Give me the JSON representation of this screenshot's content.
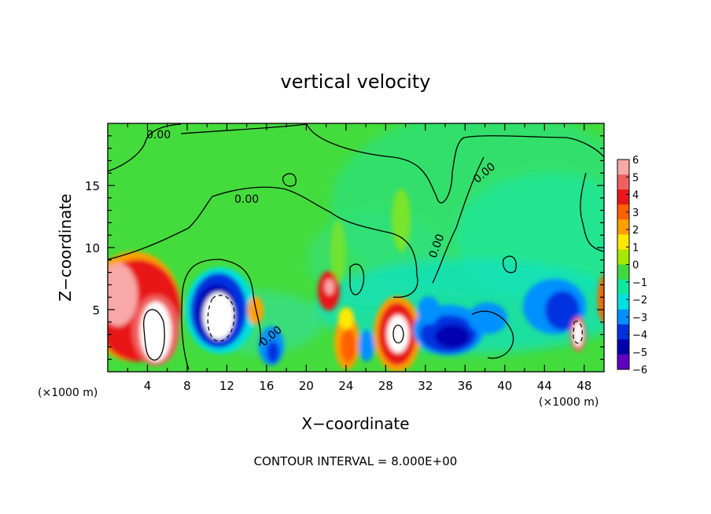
{
  "chart_data": {
    "type": "heatmap",
    "title": "vertical velocity",
    "xlabel": "X−coordinate",
    "ylabel": "Z−coordinate",
    "x_unit_left": "(×1000 m)",
    "x_unit_right": "(×1000 m)",
    "xlim": [
      0,
      50
    ],
    "ylim": [
      0,
      20
    ],
    "x_ticks": [
      4,
      8,
      12,
      16,
      20,
      24,
      28,
      32,
      36,
      40,
      44,
      48
    ],
    "y_ticks": [
      5,
      10,
      15
    ],
    "colorbar": {
      "ticks": [
        "6",
        "5",
        "4",
        "3",
        "2",
        "1",
        "0",
        "−1",
        "−2",
        "−3",
        "−4",
        "−5",
        "−6"
      ],
      "colors": [
        "#f8a8a8",
        "#f06060",
        "#e81818",
        "#ff6000",
        "#ffa000",
        "#ffe800",
        "#a8e800",
        "#40d840",
        "#10e8a0",
        "#00e0e0",
        "#0090ff",
        "#0030e0",
        "#0000b0",
        "#6000c0"
      ]
    },
    "contour_labels": [
      "0.00",
      "0.00",
      "0.00",
      "0.00",
      "0.00"
    ],
    "interval_text": "CONTOUR INTERVAL = 8.000E+00",
    "features": [
      {
        "x": 2.0,
        "z": 5.8,
        "value": 6.0
      },
      {
        "x": 4.8,
        "z": 3.6,
        "value": 7.0
      },
      {
        "x": 11.5,
        "z": 4.8,
        "value": -5.0
      },
      {
        "x": 11.3,
        "z": 4.5,
        "value": 6.5
      },
      {
        "x": 14.5,
        "z": 5.0,
        "value": 3.0
      },
      {
        "x": 17.0,
        "z": 2.0,
        "value": -3.0
      },
      {
        "x": 21.3,
        "z": 6.5,
        "value": 5.0
      },
      {
        "x": 24.0,
        "z": 2.5,
        "value": 4.0
      },
      {
        "x": 23.0,
        "z": 4.5,
        "value": 2.0
      },
      {
        "x": 26.0,
        "z": 2.3,
        "value": -2.0
      },
      {
        "x": 29.3,
        "z": 3.6,
        "value": 6.5
      },
      {
        "x": 33.5,
        "z": 3.0,
        "value": -4.5
      },
      {
        "x": 31.5,
        "z": 5.0,
        "value": -3.0
      },
      {
        "x": 37.0,
        "z": 4.5,
        "value": -2.5
      },
      {
        "x": 42.0,
        "z": 4.0,
        "value": -2.0
      },
      {
        "x": 44.5,
        "z": 4.5,
        "value": -3.5
      },
      {
        "x": 47.0,
        "z": 3.3,
        "value": 6.0
      },
      {
        "x": 47.5,
        "z": 3.5,
        "value": -3.0
      },
      {
        "x": 49.7,
        "z": 6.0,
        "value": 4.0
      },
      {
        "x": 27.0,
        "z": 12.5,
        "value": 0.6
      }
    ]
  }
}
